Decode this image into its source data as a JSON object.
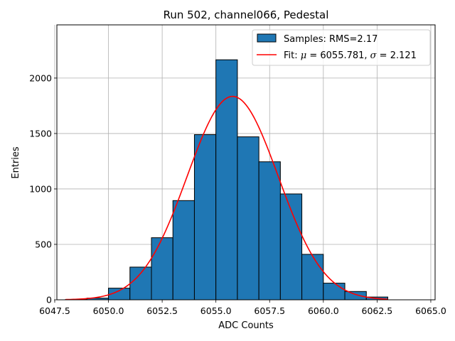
{
  "chart_data": {
    "type": "bar",
    "subtype": "histogram",
    "title": "Run 502, channel066, Pedestal",
    "xlabel": "ADC Counts",
    "ylabel": "Entries",
    "xlim": [
      6047.6,
      6065.2
    ],
    "ylim": [
      0,
      2480
    ],
    "x_ticks": [
      6047.5,
      6050.0,
      6052.5,
      6055.0,
      6057.5,
      6060.0,
      6062.5,
      6065.0
    ],
    "x_tick_labels": [
      "6047.5",
      "6050.0",
      "6052.5",
      "6055.0",
      "6057.5",
      "6060.0",
      "6062.5",
      "6065.0"
    ],
    "y_ticks": [
      0,
      500,
      1000,
      1500,
      2000
    ],
    "y_tick_labels": [
      "0",
      "500",
      "1000",
      "1500",
      "2000"
    ],
    "grid": true,
    "bin_edges": [
      6048,
      6049,
      6050,
      6051,
      6052,
      6053,
      6054,
      6055,
      6056,
      6057,
      6058,
      6059,
      6060,
      6061,
      6062,
      6063
    ],
    "counts": [
      3,
      15,
      105,
      295,
      560,
      895,
      1490,
      2165,
      1470,
      1245,
      955,
      410,
      150,
      75,
      25
    ],
    "fit": {
      "mu": 6055.781,
      "sigma": 2.121,
      "amplitude": 1835,
      "x_range": [
        6048,
        6063
      ]
    },
    "series": [
      {
        "name": "Samples",
        "type": "histogram",
        "color": "#1f77b4",
        "edgecolor": "#000000"
      },
      {
        "name": "Fit",
        "type": "line",
        "color": "#ff0000"
      }
    ],
    "legend": {
      "position": "top-right",
      "samples_label": "Samples: RMS=2.17",
      "fit_prefix": "Fit: ",
      "mu_symbol": "μ",
      "mu_value": " = 6055.781, ",
      "sigma_symbol": "σ",
      "sigma_value": " = 2.121"
    }
  }
}
